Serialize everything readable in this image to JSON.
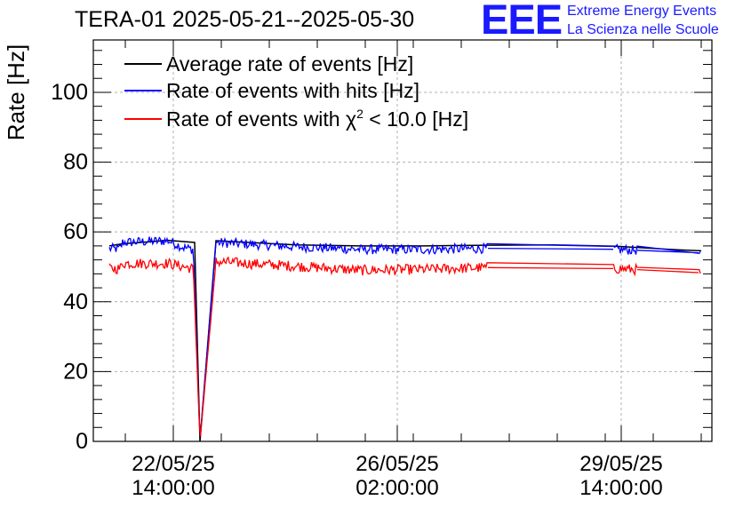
{
  "title": "TERA-01 2025-05-21--2025-05-30",
  "logo": {
    "letters": "EEE",
    "line1": "Extreme Energy Events",
    "line2": "La Scienza nelle Scuole"
  },
  "colors": {
    "average": "#000000",
    "hits": "#0000ff",
    "chi2": "#ff0000",
    "grid": "#b0b0b0",
    "logo": "#1a1aff"
  },
  "chart_data": {
    "type": "line",
    "title": "TERA-01 2025-05-21--2025-05-30",
    "ylabel": "Rate [Hz]",
    "xlabel": "",
    "ylim": [
      0,
      115
    ],
    "xlim": [
      "2025-05-21 08:00",
      "2025-05-31 00:00"
    ],
    "x_ticks": [
      {
        "at": "2025-05-22 14:00",
        "line1": "22/05/25",
        "line2": "14:00:00"
      },
      {
        "at": "2025-05-26 02:00",
        "line1": "26/05/25",
        "line2": "02:00:00"
      },
      {
        "at": "2025-05-29 14:00",
        "line1": "29/05/25",
        "line2": "14:00:00"
      }
    ],
    "y_ticks": [
      0,
      20,
      40,
      60,
      80,
      100
    ],
    "grid": true,
    "legend_position": "top-left",
    "series": [
      {
        "name": "Average rate of events [Hz]",
        "color": "#000000",
        "points": [
          [
            "2025-05-21 14:00",
            56
          ],
          [
            "2025-05-21 19:00",
            56.6
          ],
          [
            "2025-05-22 12:00",
            57.6
          ],
          [
            "2025-05-22 22:00",
            57
          ],
          [
            "2025-05-23 00:00",
            0
          ],
          [
            "2025-05-23 06:00",
            57.5
          ],
          [
            "2025-05-24 12:00",
            56.3
          ],
          [
            "2025-05-25 12:00",
            56
          ],
          [
            "2025-05-26 12:00",
            56
          ],
          [
            "2025-05-27 12:00",
            56.2
          ],
          [
            "2025-05-28 12:00",
            56.3
          ],
          [
            "2025-05-29 12:00",
            55.9
          ],
          [
            "2025-05-30 08:00",
            55
          ],
          [
            "2025-05-30 20:00",
            54.6
          ]
        ]
      },
      {
        "name": "Rate of events with hits [Hz]",
        "color": "#0000ff",
        "center": [
          [
            "2025-05-21 14:00",
            55.2
          ],
          [
            "2025-05-21 18:00",
            55.2
          ],
          [
            "2025-05-21 19:00",
            57
          ],
          [
            "2025-05-22 12:00",
            57.5
          ],
          [
            "2025-05-22 18:00",
            55.5
          ],
          [
            "2025-05-22 21:30",
            55
          ],
          [
            "2025-05-23 00:00",
            0
          ],
          [
            "2025-05-23 06:00",
            57
          ],
          [
            "2025-05-24 12:00",
            55.8
          ],
          [
            "2025-05-25 12:00",
            55
          ],
          [
            "2025-05-26 12:00",
            55
          ],
          [
            "2025-05-27 12:00",
            55.3
          ],
          [
            "2025-05-28 12:00",
            55.5
          ],
          [
            "2025-05-29 12:00",
            55
          ],
          [
            "2025-05-30 20:00",
            54
          ]
        ],
        "noise": 1.4
      },
      {
        "name": "Rate of events with χ² < 10.0 [Hz]",
        "color": "#ff0000",
        "center": [
          [
            "2025-05-21 14:00",
            49.5
          ],
          [
            "2025-05-21 18:00",
            49.5
          ],
          [
            "2025-05-21 19:00",
            51
          ],
          [
            "2025-05-22 12:00",
            51
          ],
          [
            "2025-05-22 18:00",
            50
          ],
          [
            "2025-05-22 21:30",
            49.5
          ],
          [
            "2025-05-23 00:00",
            0
          ],
          [
            "2025-05-23 06:00",
            51.5
          ],
          [
            "2025-05-24 12:00",
            50.2
          ],
          [
            "2025-05-25 12:00",
            49
          ],
          [
            "2025-05-26 12:00",
            49.3
          ],
          [
            "2025-05-27 12:00",
            49.8
          ],
          [
            "2025-05-28 12:00",
            49.9
          ],
          [
            "2025-05-29 12:00",
            49.5
          ],
          [
            "2025-05-30 20:00",
            48.3
          ]
        ],
        "noise": 1.5
      }
    ]
  }
}
